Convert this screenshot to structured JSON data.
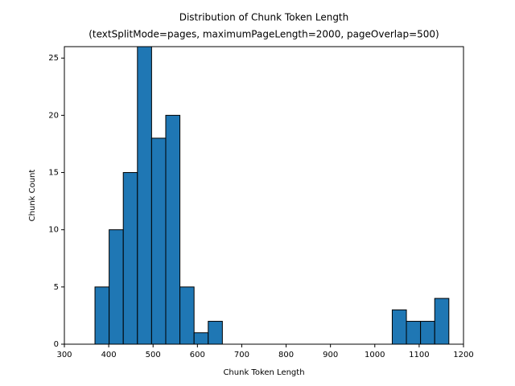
{
  "chart_data": {
    "type": "histogram",
    "title": "Distribution of Chunk Token Length",
    "subtitle": "(textSplitMode=pages, maximumPageLength=2000, pageOverlap=500)",
    "x_label": "Chunk Token Length",
    "y_label": "Chunk Count",
    "bins": [
      369,
      400.92,
      432.84,
      464.76,
      496.68,
      528.6,
      560.52,
      592.44,
      624.36,
      656.28,
      688.2,
      720.12,
      752.04,
      783.96,
      815.88,
      847.8,
      879.72,
      911.64,
      943.56,
      975.48,
      1007.4,
      1039.32,
      1071.24,
      1103.16,
      1135.08,
      1167
    ],
    "counts": [
      5,
      10,
      15,
      26,
      18,
      20,
      5,
      1,
      2,
      0,
      0,
      0,
      0,
      0,
      0,
      0,
      0,
      0,
      0,
      0,
      0,
      3,
      2,
      2,
      4
    ],
    "color": "#1f77b4",
    "edgecolor": "#000000",
    "xlim": [
      300,
      1200
    ],
    "xticks": [
      300,
      400,
      500,
      600,
      700,
      800,
      900,
      1000,
      1100,
      1200
    ],
    "ylim": [
      0,
      26
    ],
    "yticks": [
      0,
      5,
      10,
      15,
      20,
      25
    ]
  }
}
